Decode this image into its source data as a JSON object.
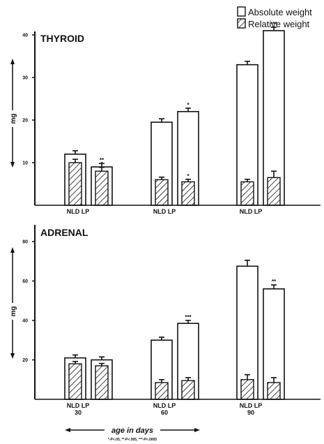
{
  "chart_data": [
    {
      "type": "bar",
      "title": "THYROID",
      "ylabel": "mg",
      "ylim": [
        0,
        45
      ],
      "yticks": [
        "10",
        "20",
        "30",
        "40"
      ],
      "yticks_values": [
        10,
        20,
        30,
        40
      ],
      "groups": [
        {
          "ages": "30",
          "labels": [
            "NLD",
            "LP"
          ]
        },
        {
          "ages": "60",
          "labels": [
            "NLD",
            "LP"
          ]
        },
        {
          "ages": "90",
          "labels": [
            "NLD",
            "LP"
          ]
        }
      ],
      "series": [
        {
          "name": "Absolute weight",
          "pattern": "open",
          "values": [
            12,
            9,
            19.5,
            22,
            33,
            41
          ],
          "errors": [
            0.8,
            0.8,
            0.8,
            0.8,
            0.8,
            0.8
          ],
          "sig": [
            "",
            "**",
            "",
            "*",
            "",
            "***"
          ]
        },
        {
          "name": "Relative weight",
          "pattern": "hatched",
          "values": [
            10,
            8,
            6,
            5.5,
            5.5,
            6.5
          ],
          "errors": [
            0.8,
            0.9,
            0.6,
            0.6,
            0.6,
            1.5
          ],
          "sig": [
            "",
            "*",
            "",
            "*",
            "",
            ""
          ]
        }
      ]
    },
    {
      "type": "bar",
      "title": "ADRENAL",
      "ylabel": "mg",
      "ylim": [
        0,
        90
      ],
      "yticks": [
        "20",
        "40",
        "60",
        "80"
      ],
      "yticks_values": [
        20,
        40,
        60,
        80
      ],
      "groups": [
        {
          "ages": "30",
          "labels": [
            "NLD",
            "LP"
          ]
        },
        {
          "ages": "60",
          "labels": [
            "NLD",
            "LP"
          ]
        },
        {
          "ages": "90",
          "labels": [
            "NLD",
            "LP"
          ]
        }
      ],
      "series": [
        {
          "name": "Absolute weight",
          "pattern": "open",
          "values": [
            21,
            20,
            30,
            38.5,
            67.5,
            56
          ],
          "errors": [
            1.5,
            1.5,
            1.5,
            1.5,
            3,
            2
          ],
          "sig": [
            "",
            "",
            "",
            "***",
            "",
            "**"
          ]
        },
        {
          "name": "Relative weight",
          "pattern": "hatched",
          "values": [
            18,
            17,
            8.5,
            9.5,
            10,
            8.5
          ],
          "errors": [
            1.2,
            1.2,
            1.5,
            1.5,
            2.5,
            2.5
          ],
          "sig": [
            "",
            "",
            "",
            "",
            "",
            ""
          ]
        }
      ]
    }
  ],
  "legend": {
    "absolute": "Absolute weight",
    "relative": "Relative weight"
  },
  "x_axis_label": "age in days",
  "footnote": "*-P<.05, **-P<.005, ***-P<.0005"
}
